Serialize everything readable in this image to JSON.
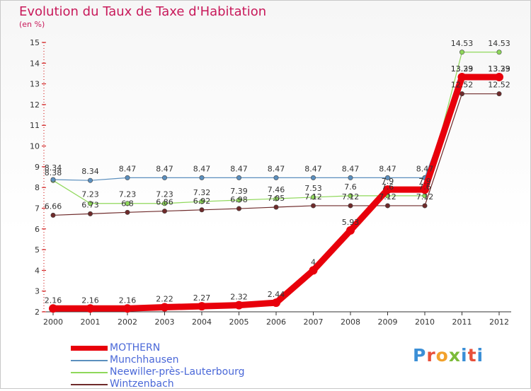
{
  "title": "Evolution du Taux de Taxe d'Habitation",
  "subtitle": "(en %)",
  "brand": "Proxiti",
  "chart_data": {
    "type": "line",
    "categories": [
      "2000",
      "2001",
      "2002",
      "2003",
      "2004",
      "2005",
      "2006",
      "2007",
      "2008",
      "2009",
      "2010",
      "2011",
      "2012"
    ],
    "ylim": [
      2,
      15
    ],
    "yticks": [
      2,
      3,
      4,
      5,
      6,
      7,
      8,
      9,
      10,
      11,
      12,
      13,
      14,
      15
    ],
    "grid": false,
    "series": [
      {
        "name": "MOTHERN",
        "color": "#e8000b",
        "values": [
          2.16,
          2.16,
          2.16,
          2.22,
          2.27,
          2.32,
          2.44,
          4.0,
          5.93,
          7.9,
          7.9,
          13.33,
          13.33
        ],
        "labels": [
          "2.16",
          "2.16",
          "2.16",
          "2.22",
          "2.27",
          "2.32",
          "2.44",
          "4",
          "5.93",
          "7.9",
          "7.9",
          "13.33",
          "13.33"
        ]
      },
      {
        "name": "Munchhausen",
        "color": "#5b8fbe",
        "values": [
          8.38,
          8.34,
          8.47,
          8.47,
          8.47,
          8.47,
          8.47,
          8.47,
          8.47,
          8.47,
          8.47,
          13.29,
          13.29
        ],
        "labels": [
          "8.38",
          "8.34",
          "8.47",
          "8.47",
          "8.47",
          "8.47",
          "8.47",
          "8.47",
          "8.47",
          "8.47",
          "8.47",
          "13.29",
          "13.29"
        ]
      },
      {
        "name": "Neewiller-près-Lauterbourg",
        "color": "#8fd85a",
        "values": [
          8.34,
          7.23,
          7.23,
          7.23,
          7.32,
          7.39,
          7.46,
          7.53,
          7.6,
          7.6,
          7.6,
          14.53,
          14.53
        ],
        "labels": [
          "8.34",
          "7.23",
          "7.23",
          "7.23",
          "7.32",
          "7.39",
          "7.46",
          "7.53",
          "7.6",
          "7.6",
          "7.6",
          "14.53",
          "14.53"
        ]
      },
      {
        "name": "Wintzenbach",
        "color": "#6e2a2a",
        "values": [
          6.66,
          6.73,
          6.8,
          6.86,
          6.92,
          6.98,
          7.05,
          7.12,
          7.12,
          7.12,
          7.12,
          12.52,
          12.52
        ],
        "labels": [
          "6.66",
          "6.73",
          "6.8",
          "6.86",
          "6.92",
          "6.98",
          "7.05",
          "7.12",
          "7.12",
          "7.12",
          "7.12",
          "12.52",
          "12.52"
        ]
      }
    ]
  }
}
